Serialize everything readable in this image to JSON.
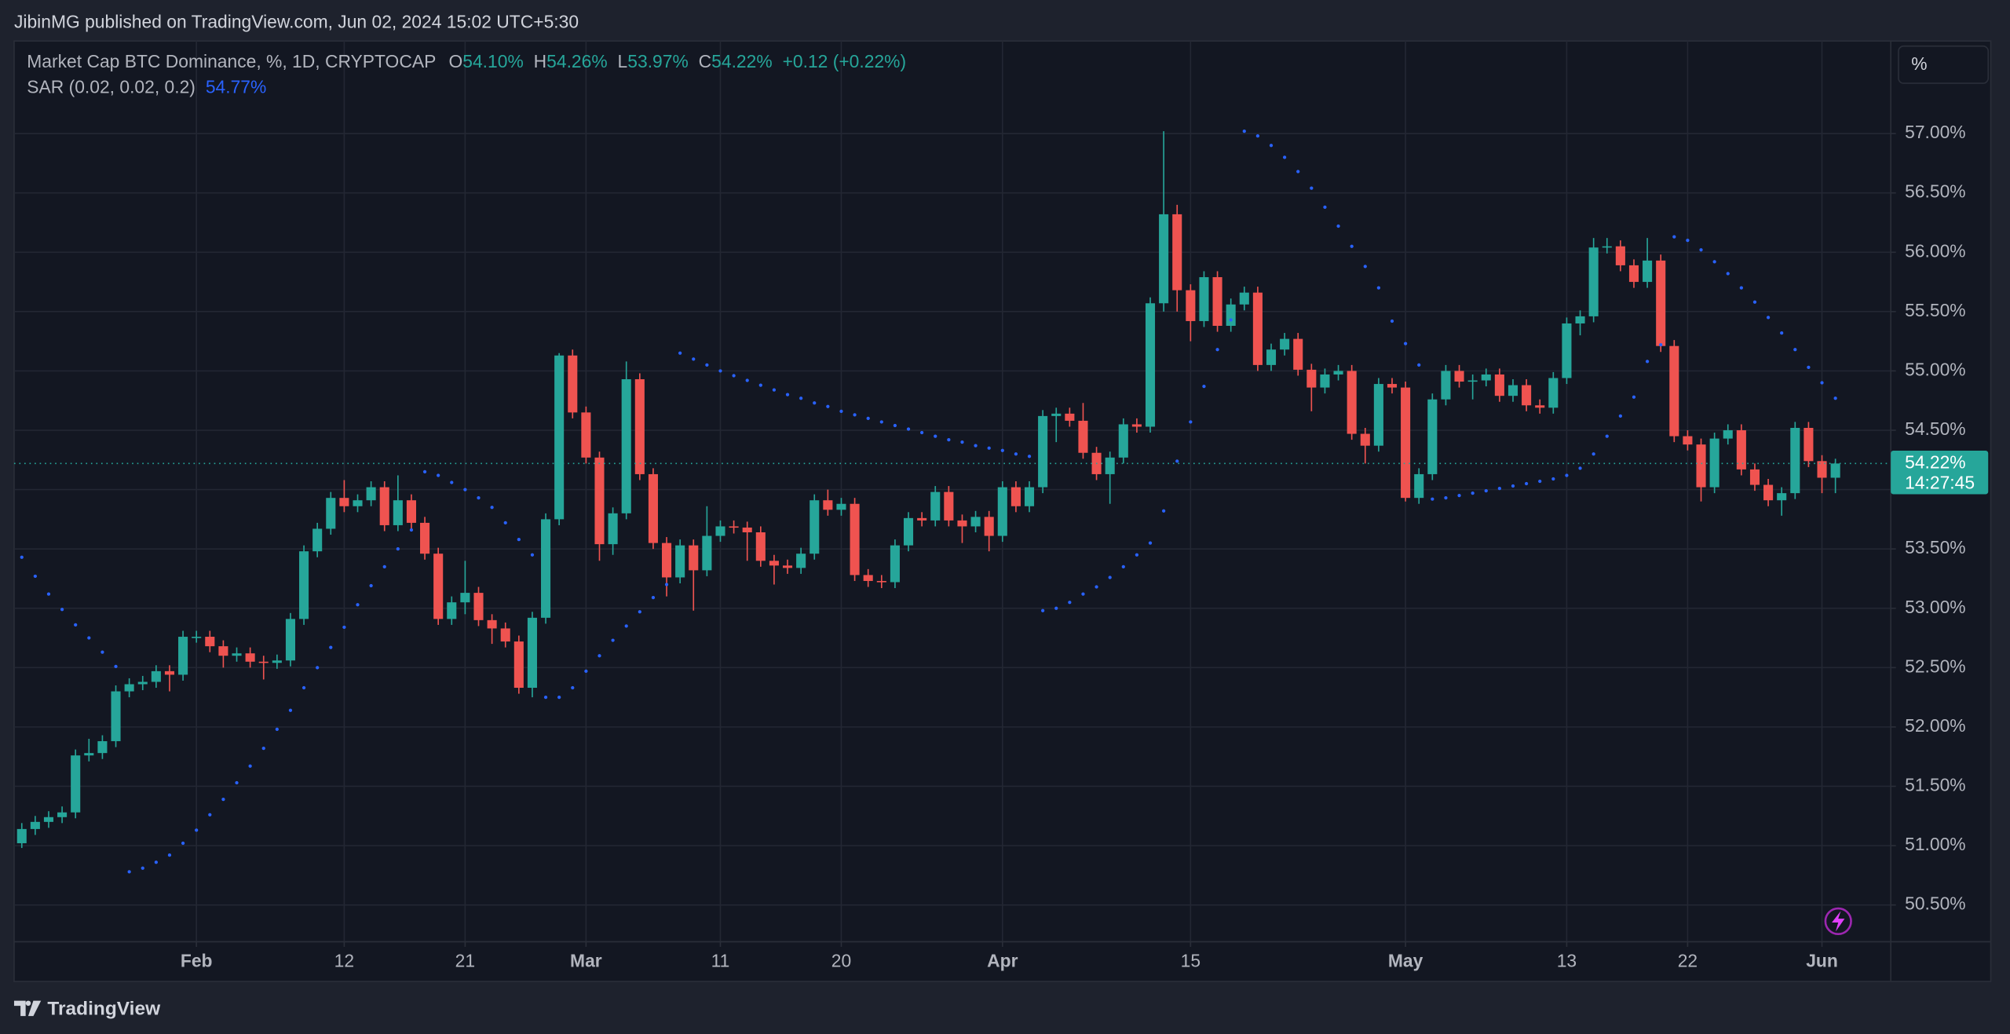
{
  "header": {
    "attribution": "JibinMG published on TradingView.com, Jun 02, 2024 15:02 UTC+5:30",
    "scale_button": "%"
  },
  "footer": {
    "brand": "TradingView"
  },
  "chart_data": {
    "type": "candlestick",
    "title": "Market Cap BTC Dominance, %, 1D, CRYPTOCAP",
    "ohlc_keys": [
      "O",
      "H",
      "L",
      "C"
    ],
    "ohlc_labels": [
      "54.10%",
      "54.26%",
      "53.97%",
      "54.22%"
    ],
    "change_label": "+0.12 (+0.22%)",
    "last_price_label": "54.22%",
    "countdown": "14:27:45",
    "up_color": "#26a69a",
    "down_color": "#ef5350",
    "x": [
      "Jan 19",
      "Jan 20",
      "Jan 21",
      "Jan 22",
      "Jan 23",
      "Jan 24",
      "Jan 25",
      "Jan 26",
      "Jan 27",
      "Jan 28",
      "Jan 29",
      "Jan 30",
      "Jan 31",
      "Feb 1",
      "Feb 2",
      "Feb 3",
      "Feb 4",
      "Feb 5",
      "Feb 6",
      "Feb 7",
      "Feb 8",
      "Feb 9",
      "Feb 10",
      "Feb 11",
      "Feb 12",
      "Feb 13",
      "Feb 14",
      "Feb 15",
      "Feb 16",
      "Feb 17",
      "Feb 18",
      "Feb 19",
      "Feb 20",
      "Feb 21",
      "Feb 22",
      "Feb 23",
      "Feb 24",
      "Feb 25",
      "Feb 26",
      "Feb 27",
      "Feb 28",
      "Feb 29",
      "Mar 1",
      "Mar 2",
      "Mar 3",
      "Mar 4",
      "Mar 5",
      "Mar 6",
      "Mar 7",
      "Mar 8",
      "Mar 9",
      "Mar 10",
      "Mar 11",
      "Mar 12",
      "Mar 13",
      "Mar 14",
      "Mar 15",
      "Mar 16",
      "Mar 17",
      "Mar 18",
      "Mar 19",
      "Mar 20",
      "Mar 21",
      "Mar 22",
      "Mar 23",
      "Mar 24",
      "Mar 25",
      "Mar 26",
      "Mar 27",
      "Mar 28",
      "Mar 29",
      "Mar 30",
      "Mar 31",
      "Apr 1",
      "Apr 2",
      "Apr 3",
      "Apr 4",
      "Apr 5",
      "Apr 6",
      "Apr 7",
      "Apr 8",
      "Apr 9",
      "Apr 10",
      "Apr 11",
      "Apr 12",
      "Apr 13",
      "Apr 14",
      "Apr 15",
      "Apr 16",
      "Apr 17",
      "Apr 18",
      "Apr 19",
      "Apr 20",
      "Apr 21",
      "Apr 22",
      "Apr 23",
      "Apr 24",
      "Apr 25",
      "Apr 26",
      "Apr 27",
      "Apr 28",
      "Apr 29",
      "Apr 30",
      "May 1",
      "May 2",
      "May 3",
      "May 4",
      "May 5",
      "May 6",
      "May 7",
      "May 8",
      "May 9",
      "May 10",
      "May 11",
      "May 12",
      "May 13",
      "May 14",
      "May 15",
      "May 16",
      "May 17",
      "May 18",
      "May 19",
      "May 20",
      "May 21",
      "May 22",
      "May 23",
      "May 24",
      "May 25",
      "May 26",
      "May 27",
      "May 28",
      "May 29",
      "May 30",
      "May 31",
      "Jun 1",
      "Jun 2"
    ],
    "open": [
      51.02,
      51.14,
      51.2,
      51.24,
      51.28,
      51.76,
      51.78,
      51.88,
      52.3,
      52.36,
      52.38,
      52.47,
      52.44,
      52.76,
      52.76,
      52.68,
      52.6,
      52.62,
      52.55,
      52.54,
      52.56,
      52.91,
      53.48,
      53.67,
      53.93,
      53.86,
      53.91,
      54.02,
      53.7,
      53.91,
      53.72,
      53.46,
      52.91,
      53.05,
      53.13,
      52.9,
      52.83,
      52.72,
      52.33,
      52.92,
      53.75,
      55.13,
      54.65,
      54.27,
      53.54,
      53.8,
      54.93,
      54.13,
      53.55,
      53.26,
      53.53,
      53.32,
      53.61,
      53.69,
      53.68,
      53.64,
      53.4,
      53.36,
      53.34,
      53.46,
      53.91,
      53.83,
      53.88,
      53.28,
      53.23,
      53.22,
      53.53,
      53.76,
      53.74,
      53.98,
      53.74,
      53.69,
      53.77,
      53.61,
      54.02,
      53.86,
      54.02,
      54.62,
      54.64,
      54.58,
      54.31,
      54.13,
      54.27,
      54.55,
      54.53,
      55.57,
      56.32,
      55.68,
      55.42,
      55.79,
      55.38,
      55.56,
      55.66,
      55.05,
      55.18,
      55.27,
      55.01,
      54.86,
      54.97,
      55.0,
      54.47,
      54.37,
      54.89,
      54.86,
      53.93,
      54.13,
      54.76,
      55.0,
      54.91,
      54.92,
      54.97,
      54.79,
      54.88,
      54.71,
      54.69,
      54.94,
      55.4,
      55.46,
      56.04,
      56.05,
      55.89,
      55.75,
      55.93,
      55.21,
      54.45,
      54.38,
      54.02,
      54.43,
      54.5,
      54.17,
      54.04,
      53.91,
      53.97,
      54.52,
      54.24,
      54.1
    ],
    "high": [
      51.19,
      51.25,
      51.29,
      51.33,
      51.81,
      51.9,
      51.93,
      52.35,
      52.41,
      52.43,
      52.52,
      52.52,
      52.81,
      52.81,
      52.81,
      52.73,
      52.67,
      52.67,
      52.6,
      52.61,
      52.96,
      53.53,
      53.72,
      53.98,
      54.08,
      53.96,
      54.07,
      54.07,
      54.12,
      53.96,
      53.77,
      53.51,
      53.1,
      53.4,
      53.18,
      52.95,
      52.88,
      52.77,
      52.97,
      53.8,
      55.15,
      55.18,
      54.7,
      54.32,
      53.85,
      55.08,
      54.98,
      54.18,
      53.6,
      53.58,
      53.58,
      53.86,
      53.74,
      53.74,
      53.73,
      53.69,
      53.45,
      53.41,
      53.51,
      53.96,
      54.0,
      53.93,
      53.93,
      53.33,
      53.28,
      53.58,
      53.81,
      53.81,
      54.03,
      54.03,
      53.79,
      53.82,
      53.82,
      54.07,
      54.07,
      54.07,
      54.67,
      54.69,
      54.69,
      54.73,
      54.36,
      54.32,
      54.6,
      54.6,
      55.62,
      57.02,
      56.4,
      55.73,
      55.84,
      55.84,
      55.61,
      55.71,
      55.71,
      55.23,
      55.32,
      55.32,
      55.06,
      55.02,
      55.05,
      55.05,
      54.52,
      54.94,
      54.94,
      54.91,
      54.18,
      54.81,
      55.05,
      55.05,
      54.97,
      55.02,
      55.02,
      54.93,
      54.93,
      54.76,
      54.99,
      55.45,
      55.51,
      56.12,
      56.12,
      56.1,
      55.94,
      56.12,
      55.98,
      55.26,
      54.5,
      54.43,
      54.48,
      54.55,
      54.55,
      54.22,
      54.09,
      54.02,
      54.57,
      54.57,
      54.29,
      54.26
    ],
    "low": [
      50.98,
      51.09,
      51.15,
      51.19,
      51.23,
      51.71,
      51.73,
      51.83,
      52.25,
      52.31,
      52.33,
      52.3,
      52.39,
      52.71,
      52.63,
      52.5,
      52.55,
      52.5,
      52.4,
      52.49,
      52.51,
      52.86,
      53.43,
      53.62,
      53.81,
      53.81,
      53.86,
      53.65,
      53.65,
      53.67,
      53.41,
      52.86,
      52.86,
      52.95,
      52.85,
      52.7,
      52.67,
      52.28,
      52.25,
      52.87,
      53.7,
      54.6,
      54.22,
      53.4,
      53.45,
      53.75,
      54.08,
      53.5,
      53.1,
      53.21,
      52.98,
      53.27,
      53.56,
      53.63,
      53.4,
      53.35,
      53.2,
      53.29,
      53.29,
      53.41,
      53.78,
      53.78,
      53.23,
      53.18,
      53.17,
      53.17,
      53.48,
      53.69,
      53.69,
      53.69,
      53.55,
      53.64,
      53.48,
      53.56,
      53.81,
      53.81,
      53.97,
      54.4,
      54.53,
      54.26,
      54.08,
      53.88,
      54.22,
      54.48,
      54.48,
      55.5,
      55.5,
      55.25,
      55.37,
      55.33,
      55.33,
      55.51,
      55.0,
      55.0,
      55.13,
      54.96,
      54.66,
      54.81,
      54.92,
      54.42,
      54.22,
      54.32,
      54.81,
      53.9,
      53.88,
      54.08,
      54.71,
      54.86,
      54.76,
      54.87,
      54.74,
      54.74,
      54.66,
      54.64,
      54.64,
      54.89,
      55.3,
      55.41,
      55.99,
      55.84,
      55.7,
      55.7,
      55.16,
      54.4,
      54.33,
      53.9,
      53.97,
      54.38,
      54.12,
      53.99,
      53.86,
      53.78,
      53.92,
      54.19,
      53.97,
      53.97
    ],
    "close": [
      51.14,
      51.2,
      51.24,
      51.28,
      51.76,
      51.78,
      51.88,
      52.3,
      52.36,
      52.38,
      52.47,
      52.44,
      52.76,
      52.76,
      52.68,
      52.6,
      52.62,
      52.55,
      52.54,
      52.56,
      52.91,
      53.48,
      53.67,
      53.93,
      53.86,
      53.91,
      54.02,
      53.7,
      53.91,
      53.72,
      53.46,
      52.91,
      53.05,
      53.13,
      52.9,
      52.83,
      52.72,
      52.33,
      52.92,
      53.75,
      55.13,
      54.65,
      54.27,
      53.54,
      53.8,
      54.93,
      54.13,
      53.55,
      53.26,
      53.53,
      53.32,
      53.61,
      53.69,
      53.68,
      53.64,
      53.4,
      53.36,
      53.34,
      53.46,
      53.91,
      53.83,
      53.88,
      53.28,
      53.23,
      53.22,
      53.53,
      53.76,
      53.74,
      53.98,
      53.74,
      53.69,
      53.77,
      53.61,
      54.02,
      53.86,
      54.02,
      54.62,
      54.64,
      54.58,
      54.31,
      54.13,
      54.27,
      54.55,
      54.53,
      55.57,
      56.32,
      55.68,
      55.42,
      55.79,
      55.38,
      55.56,
      55.66,
      55.05,
      55.18,
      55.27,
      55.01,
      54.86,
      54.97,
      55.0,
      54.47,
      54.37,
      54.89,
      54.86,
      53.93,
      54.13,
      54.76,
      55.0,
      54.91,
      54.92,
      54.97,
      54.79,
      54.88,
      54.71,
      54.69,
      54.94,
      55.4,
      55.46,
      56.04,
      56.05,
      55.89,
      55.75,
      55.93,
      55.21,
      54.45,
      54.38,
      54.02,
      54.43,
      54.5,
      54.17,
      54.04,
      53.91,
      53.97,
      54.52,
      54.24,
      54.1,
      54.22
    ],
    "series": [
      {
        "name": "SAR (0.02, 0.02, 0.2)",
        "type": "dots",
        "color": "#2962ff",
        "last_label": "54.77%",
        "values": [
          53.43,
          53.27,
          53.12,
          52.99,
          52.86,
          52.75,
          52.63,
          52.51,
          50.78,
          50.81,
          50.86,
          50.92,
          51.02,
          51.13,
          51.26,
          51.39,
          51.53,
          51.67,
          51.82,
          51.98,
          52.14,
          52.33,
          52.5,
          52.67,
          52.84,
          53.03,
          53.19,
          53.35,
          53.5,
          53.66,
          54.15,
          54.12,
          54.06,
          54.0,
          53.93,
          53.85,
          53.72,
          53.58,
          53.45,
          52.25,
          52.25,
          52.33,
          52.47,
          52.6,
          52.73,
          52.85,
          52.97,
          53.09,
          53.2,
          55.15,
          55.1,
          55.05,
          55.0,
          54.96,
          54.92,
          54.88,
          54.84,
          54.8,
          54.77,
          54.73,
          54.7,
          54.66,
          54.63,
          54.6,
          54.57,
          54.54,
          54.51,
          54.48,
          54.45,
          54.42,
          54.4,
          54.37,
          54.35,
          54.33,
          54.3,
          54.28,
          52.98,
          53.0,
          53.05,
          53.12,
          53.18,
          53.26,
          53.35,
          53.45,
          53.55,
          53.82,
          54.24,
          54.57,
          54.87,
          55.18,
          55.43,
          57.02,
          56.98,
          56.9,
          56.8,
          56.68,
          56.54,
          56.38,
          56.22,
          56.05,
          55.88,
          55.7,
          55.42,
          55.23,
          55.05,
          53.92,
          53.93,
          53.95,
          53.97,
          53.99,
          54.01,
          54.03,
          54.05,
          54.07,
          54.09,
          54.12,
          54.18,
          54.3,
          54.45,
          54.62,
          54.78,
          55.08,
          55.22,
          56.13,
          56.1,
          56.02,
          55.92,
          55.82,
          55.7,
          55.58,
          55.45,
          55.32,
          55.18,
          55.03,
          54.9,
          54.77
        ]
      }
    ],
    "ylim": [
      50.19,
      57.78
    ],
    "yticks": [
      {
        "value": 50.5,
        "label": "50.50%"
      },
      {
        "value": 51,
        "label": "51.00%"
      },
      {
        "value": 51.5,
        "label": "51.50%"
      },
      {
        "value": 52,
        "label": "52.00%"
      },
      {
        "value": 52.5,
        "label": "52.50%"
      },
      {
        "value": 53,
        "label": "53.00%"
      },
      {
        "value": 53.5,
        "label": "53.50%"
      },
      {
        "value": 54,
        "label": "54.00%"
      },
      {
        "value": 54.5,
        "label": "54.50%"
      },
      {
        "value": 55,
        "label": "55.00%"
      },
      {
        "value": 55.5,
        "label": "55.50%"
      },
      {
        "value": 56,
        "label": "56.00%"
      },
      {
        "value": 56.5,
        "label": "56.50%"
      },
      {
        "value": 57,
        "label": "57.00%"
      }
    ],
    "xticks": [
      {
        "value": "Feb 1",
        "label": "Feb"
      },
      {
        "value": "Feb 12",
        "label": "12"
      },
      {
        "value": "Feb 21",
        "label": "21"
      },
      {
        "value": "Mar 1",
        "label": "Mar"
      },
      {
        "value": "Mar 11",
        "label": "11"
      },
      {
        "value": "Mar 20",
        "label": "20"
      },
      {
        "value": "Apr 1",
        "label": "Apr"
      },
      {
        "value": "Apr 15",
        "label": "15"
      },
      {
        "value": "May 1",
        "label": "May"
      },
      {
        "value": "May 13",
        "label": "13"
      },
      {
        "value": "May 22",
        "label": "22"
      },
      {
        "value": "Jun 1",
        "label": "Jun"
      }
    ],
    "grid": true
  }
}
